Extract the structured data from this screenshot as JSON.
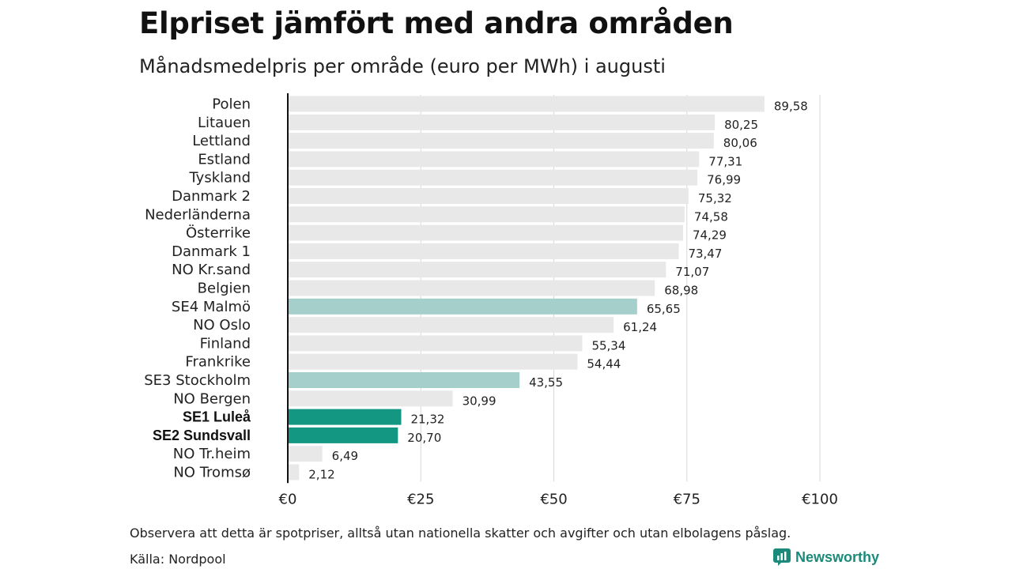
{
  "title": "Elpriset jämfört med andra områden",
  "subtitle": "Månadsmedelpris per område (euro per MWh) i augusti",
  "note": "Observera att detta är spotpriser, alltså utan nationella skatter och avgifter och utan elbolagens påslag.",
  "source": "Källa: Nordpool",
  "brand": {
    "name": "Newsworthy",
    "icon": "newsworthy-logo-icon"
  },
  "colors": {
    "default_bar": "#e8e8e8",
    "se_south_bar": "#a5cfca",
    "se_north_bar": "#139783",
    "brand": "#1b8a7a",
    "gridline": "#d8d8d8",
    "axis_line": "#111111"
  },
  "chart_data": {
    "type": "bar",
    "orientation": "horizontal",
    "title": "Elpriset jämfört med andra områden",
    "subtitle": "Månadsmedelpris per område (euro per MWh) i augusti",
    "categories": [
      "Polen",
      "Litauen",
      "Lettland",
      "Estland",
      "Tyskland",
      "Danmark 2",
      "Nederländerna",
      "Österrike",
      "Danmark 1",
      "NO Kr.sand",
      "Belgien",
      "SE4 Malmö",
      "NO Oslo",
      "Finland",
      "Frankrike",
      "SE3 Stockholm",
      "NO Bergen",
      "SE1 Luleå",
      "SE2 Sundsvall",
      "NO Tr.heim",
      "NO Tromsø"
    ],
    "values": [
      89.58,
      80.25,
      80.06,
      77.31,
      76.99,
      75.32,
      74.58,
      74.29,
      73.47,
      71.07,
      68.98,
      65.65,
      61.24,
      55.34,
      54.44,
      43.55,
      30.99,
      21.32,
      20.7,
      6.49,
      2.12
    ],
    "value_labels": [
      "89,58",
      "80,25",
      "80,06",
      "77,31",
      "76,99",
      "75,32",
      "74,58",
      "74,29",
      "73,47",
      "71,07",
      "68,98",
      "65,65",
      "61,24",
      "55,34",
      "54,44",
      "43,55",
      "30,99",
      "21,32",
      "20,70",
      "6,49",
      "2,12"
    ],
    "highlight": [
      "none",
      "none",
      "none",
      "none",
      "none",
      "none",
      "none",
      "none",
      "none",
      "none",
      "none",
      "se_south",
      "none",
      "none",
      "none",
      "se_south",
      "none",
      "se_north",
      "se_north",
      "none",
      "none"
    ],
    "bold_labels": [
      "SE1 Luleå",
      "SE2 Sundsvall"
    ],
    "xlim": [
      0,
      100
    ],
    "xticks": [
      0,
      25,
      50,
      75,
      100
    ],
    "xtick_labels": [
      "€0",
      "€25",
      "€50",
      "€75",
      "€100"
    ],
    "grid": true
  }
}
